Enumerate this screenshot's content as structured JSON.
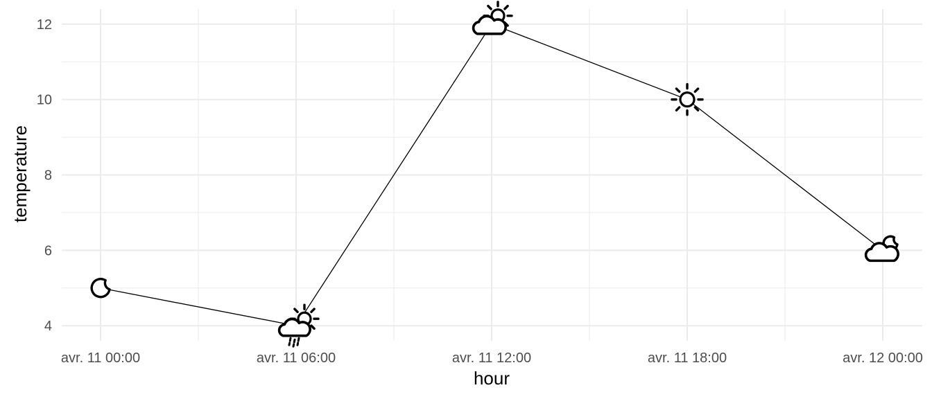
{
  "chart_data": {
    "type": "line",
    "xlabel": "hour",
    "ylabel": "temperature",
    "x": [
      "avr. 11 00:00",
      "avr. 11 06:00",
      "avr. 11 12:00",
      "avr. 11 18:00",
      "avr. 12 00:00"
    ],
    "series": [
      {
        "values": [
          5,
          4,
          12,
          10,
          6
        ],
        "icons": [
          "moon-icon",
          "sun-cloud-rain-icon",
          "sun-cloud-icon",
          "sun-icon",
          "cloud-moon-icon"
        ]
      }
    ],
    "yticks": [
      4,
      6,
      8,
      10,
      12
    ],
    "ylim": [
      3.6,
      12.4
    ],
    "grid": true,
    "legend": "none",
    "colors": {
      "line": "#000000",
      "grid": "#ebebeb",
      "tick_text": "#4d4d4d"
    }
  }
}
